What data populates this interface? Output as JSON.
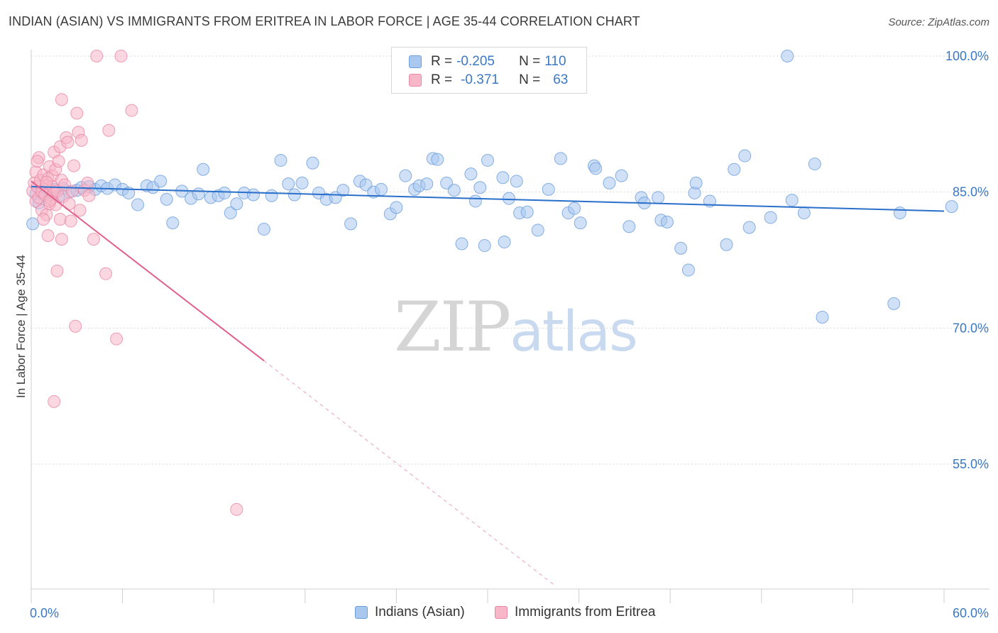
{
  "header": {
    "title": "INDIAN (ASIAN) VS IMMIGRANTS FROM ERITREA IN LABOR FORCE | AGE 35-44 CORRELATION CHART",
    "source": "Source: ZipAtlas.com"
  },
  "watermark": {
    "zip": "ZIP",
    "atlas": "atlas"
  },
  "legend_top": {
    "rows": [
      {
        "r_label": "R =",
        "r_value": "-0.205",
        "n_label": "N =",
        "n_value": "110"
      },
      {
        "r_label": "R =",
        "r_value": "-0.371",
        "n_label": "N =",
        "n_value": "63"
      }
    ]
  },
  "legend_bottom": {
    "items": [
      "Indians (Asian)",
      "Immigrants from Eritrea"
    ]
  },
  "colors": {
    "blue_fill": "#a9c8f0",
    "blue_stroke": "#6b9edb",
    "blue_line": "#2a6fca",
    "pink_fill": "#f7b7c8",
    "pink_stroke": "#e888a5",
    "pink_line": "#e0608c",
    "axis_text": "#3b78c4",
    "grid": "#d9d9d9"
  },
  "chart_data": {
    "type": "scatter",
    "title": "INDIAN (ASIAN) VS IMMIGRANTS FROM ERITREA IN LABOR FORCE | AGE 35-44 CORRELATION CHART",
    "xlabel": "",
    "ylabel": "In Labor Force | Age 35-44",
    "xlim": [
      0,
      60
    ],
    "ylim": [
      40,
      102
    ],
    "x_tick_labels": [
      "0.0%",
      "60.0%"
    ],
    "y_ticks": [
      100,
      85,
      70,
      55
    ],
    "y_tick_labels": [
      "100.0%",
      "85.0%",
      "70.0%",
      "55.0%"
    ],
    "grid": true,
    "series": [
      {
        "name": "Indians (Asian)",
        "r": -0.205,
        "n": 110,
        "trend": {
          "x": [
            0,
            60
          ],
          "y": [
            85.6,
            82.9
          ],
          "style": "solid"
        },
        "points": [
          [
            0.3,
            84.8
          ],
          [
            0.5,
            83.8
          ],
          [
            0.7,
            85.1
          ],
          [
            1.0,
            84.6
          ],
          [
            1.2,
            85.0
          ],
          [
            1.5,
            85.3
          ],
          [
            1.8,
            84.5
          ],
          [
            2.1,
            85.4
          ],
          [
            2.5,
            85.0
          ],
          [
            3.0,
            85.2
          ],
          [
            3.3,
            85.5
          ],
          [
            3.8,
            85.6
          ],
          [
            4.2,
            85.3
          ],
          [
            4.6,
            85.7
          ],
          [
            5.0,
            85.4
          ],
          [
            5.5,
            85.8
          ],
          [
            6.0,
            85.3
          ],
          [
            6.4,
            84.9
          ],
          [
            7.0,
            83.6
          ],
          [
            7.6,
            85.7
          ],
          [
            8.0,
            85.5
          ],
          [
            8.5,
            86.2
          ],
          [
            8.9,
            84.2
          ],
          [
            9.3,
            81.6
          ],
          [
            9.9,
            85.1
          ],
          [
            10.5,
            84.3
          ],
          [
            11.0,
            84.8
          ],
          [
            11.3,
            87.5
          ],
          [
            11.8,
            84.4
          ],
          [
            12.3,
            84.6
          ],
          [
            12.7,
            84.9
          ],
          [
            13.1,
            82.7
          ],
          [
            13.5,
            83.7
          ],
          [
            14.0,
            84.9
          ],
          [
            14.6,
            84.7
          ],
          [
            15.3,
            80.9
          ],
          [
            15.8,
            84.6
          ],
          [
            16.4,
            88.5
          ],
          [
            16.9,
            85.9
          ],
          [
            17.3,
            84.7
          ],
          [
            17.8,
            86.0
          ],
          [
            18.5,
            88.2
          ],
          [
            18.9,
            84.9
          ],
          [
            19.4,
            84.2
          ],
          [
            20.0,
            84.4
          ],
          [
            20.5,
            85.2
          ],
          [
            21.0,
            81.5
          ],
          [
            21.6,
            86.2
          ],
          [
            22.0,
            85.8
          ],
          [
            22.5,
            85.0
          ],
          [
            23.0,
            85.3
          ],
          [
            23.6,
            82.6
          ],
          [
            24.0,
            83.3
          ],
          [
            24.6,
            86.8
          ],
          [
            25.2,
            85.3
          ],
          [
            25.5,
            85.7
          ],
          [
            26.0,
            85.9
          ],
          [
            26.4,
            88.7
          ],
          [
            26.7,
            88.6
          ],
          [
            27.3,
            86.0
          ],
          [
            27.8,
            85.2
          ],
          [
            28.3,
            79.3
          ],
          [
            28.9,
            87.0
          ],
          [
            29.2,
            84.0
          ],
          [
            29.5,
            85.5
          ],
          [
            29.8,
            79.1
          ],
          [
            30.0,
            88.5
          ],
          [
            31.1,
            79.5
          ],
          [
            31.0,
            86.6
          ],
          [
            31.4,
            84.3
          ],
          [
            31.9,
            86.2
          ],
          [
            32.1,
            82.7
          ],
          [
            32.6,
            82.8
          ],
          [
            33.3,
            80.8
          ],
          [
            34.0,
            85.3
          ],
          [
            34.8,
            88.7
          ],
          [
            35.3,
            82.7
          ],
          [
            35.7,
            83.2
          ],
          [
            36.1,
            81.6
          ],
          [
            37.0,
            87.9
          ],
          [
            37.1,
            87.6
          ],
          [
            38.0,
            86.0
          ],
          [
            38.8,
            86.8
          ],
          [
            39.3,
            81.2
          ],
          [
            40.1,
            84.4
          ],
          [
            40.3,
            83.8
          ],
          [
            41.2,
            84.4
          ],
          [
            41.4,
            81.9
          ],
          [
            41.8,
            81.7
          ],
          [
            42.7,
            78.8
          ],
          [
            43.2,
            76.4
          ],
          [
            43.6,
            84.9
          ],
          [
            43.7,
            86.0
          ],
          [
            44.6,
            84.0
          ],
          [
            45.7,
            79.2
          ],
          [
            46.2,
            87.5
          ],
          [
            46.9,
            89.0
          ],
          [
            47.2,
            81.1
          ],
          [
            48.6,
            82.2
          ],
          [
            49.7,
            100.0
          ],
          [
            50.0,
            84.1
          ],
          [
            50.8,
            82.7
          ],
          [
            51.5,
            88.1
          ],
          [
            52.0,
            71.2
          ],
          [
            56.7,
            72.7
          ],
          [
            57.1,
            82.7
          ],
          [
            60.5,
            83.4
          ],
          [
            0.1,
            81.5
          ]
        ]
      },
      {
        "name": "Immigrants from Eritrea",
        "r": -0.371,
        "n": 63,
        "trend": {
          "x": [
            0,
            15.3
          ],
          "y": [
            86.2,
            66.4
          ],
          "style": "solid",
          "extended": {
            "x": [
              15.3,
              34.5
            ],
            "y": [
              66.4,
              41.5
            ],
            "style": "dashed"
          }
        },
        "points": [
          [
            0.1,
            85.1
          ],
          [
            0.2,
            86.0
          ],
          [
            0.3,
            84.0
          ],
          [
            0.3,
            87.2
          ],
          [
            0.4,
            85.6
          ],
          [
            0.5,
            88.8
          ],
          [
            0.5,
            84.4
          ],
          [
            0.6,
            86.3
          ],
          [
            0.7,
            85.0
          ],
          [
            0.7,
            83.0
          ],
          [
            0.8,
            86.9
          ],
          [
            0.9,
            84.7
          ],
          [
            1.0,
            85.7
          ],
          [
            1.0,
            82.5
          ],
          [
            1.1,
            86.5
          ],
          [
            1.1,
            80.2
          ],
          [
            1.2,
            87.8
          ],
          [
            1.2,
            83.7
          ],
          [
            1.3,
            85.2
          ],
          [
            1.3,
            84.2
          ],
          [
            1.4,
            86.8
          ],
          [
            1.4,
            85.6
          ],
          [
            1.5,
            89.4
          ],
          [
            1.5,
            84.9
          ],
          [
            1.6,
            83.6
          ],
          [
            1.6,
            87.5
          ],
          [
            1.7,
            85.1
          ],
          [
            1.7,
            76.3
          ],
          [
            1.8,
            88.4
          ],
          [
            1.9,
            90.0
          ],
          [
            1.9,
            82.0
          ],
          [
            2.0,
            86.3
          ],
          [
            2.0,
            79.8
          ],
          [
            2.1,
            84.5
          ],
          [
            2.2,
            85.8
          ],
          [
            2.3,
            91.0
          ],
          [
            2.4,
            90.5
          ],
          [
            2.5,
            83.7
          ],
          [
            2.6,
            81.8
          ],
          [
            2.7,
            85.1
          ],
          [
            2.8,
            87.9
          ],
          [
            2.9,
            70.2
          ],
          [
            3.0,
            93.7
          ],
          [
            3.1,
            91.6
          ],
          [
            3.2,
            83.0
          ],
          [
            3.3,
            90.7
          ],
          [
            3.5,
            85.2
          ],
          [
            3.7,
            86.0
          ],
          [
            3.8,
            84.6
          ],
          [
            4.1,
            79.8
          ],
          [
            4.3,
            100.0
          ],
          [
            4.9,
            76.0
          ],
          [
            5.1,
            91.8
          ],
          [
            5.6,
            68.8
          ],
          [
            5.9,
            100.0
          ],
          [
            6.6,
            94.0
          ],
          [
            13.5,
            50.0
          ],
          [
            1.5,
            61.9
          ],
          [
            0.4,
            88.4
          ],
          [
            2.0,
            95.2
          ],
          [
            1.0,
            86.1
          ],
          [
            1.2,
            84.0
          ],
          [
            0.8,
            82.0
          ]
        ]
      }
    ]
  }
}
